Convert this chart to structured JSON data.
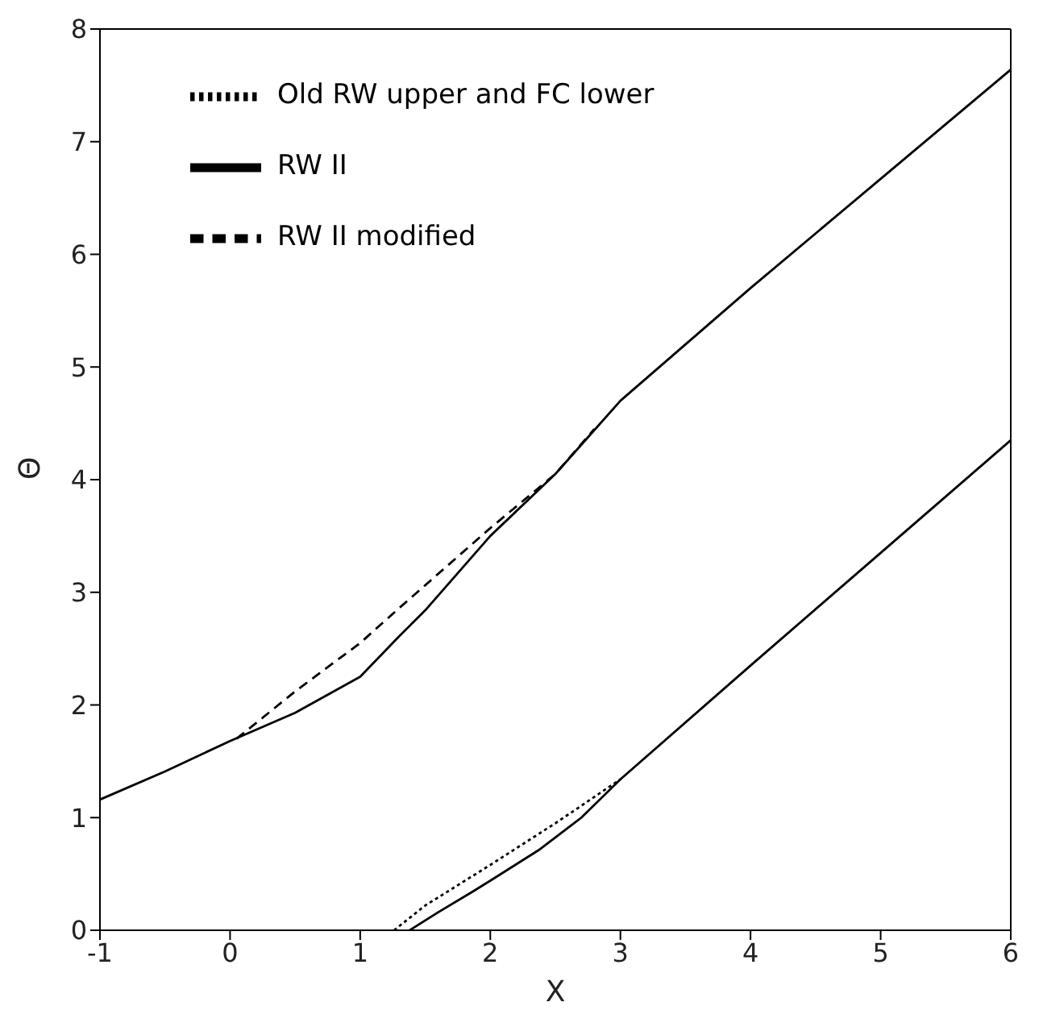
{
  "chart_data": {
    "type": "line",
    "xlabel": "X",
    "ylabel": "Θ",
    "xlim": [
      -1,
      6
    ],
    "ylim": [
      0,
      8
    ],
    "xticks": [
      -1,
      0,
      1,
      2,
      3,
      4,
      5,
      6
    ],
    "yticks": [
      0,
      1,
      2,
      3,
      4,
      5,
      6,
      7,
      8
    ],
    "legend": "top left",
    "grid": false,
    "marker": "none",
    "series": [
      {
        "name": "RW II",
        "color": "#000000",
        "line_style": "solid",
        "x": [
          -1,
          -0.5,
          0,
          0.5,
          1,
          1.3,
          1.5,
          2,
          2.5,
          3,
          4,
          5,
          6
        ],
        "values": [
          1.16,
          1.41,
          1.68,
          1.93,
          2.25,
          2.61,
          2.84,
          3.5,
          4.05,
          4.7,
          5.7,
          6.67,
          7.64
        ]
      },
      {
        "color": "#000000",
        "line_style": "solid",
        "x": [
          1.38,
          1.6,
          1.86,
          2,
          2.37,
          2.7,
          3,
          4,
          5,
          6
        ],
        "values": [
          0,
          0.16,
          0.34,
          0.44,
          0.71,
          1.0,
          1.34,
          2.35,
          3.35,
          4.35
        ]
      },
      {
        "name": "RW II modified",
        "color": "#000000",
        "line_style": "dashed",
        "x": [
          0.05,
          0.5,
          1,
          1.3,
          2,
          2.5,
          2.8
        ],
        "values": [
          1.7,
          2.12,
          2.55,
          2.86,
          3.57,
          4.05,
          4.45
        ]
      },
      {
        "name": "Old RW upper and FC lower",
        "color": "#000000",
        "line_style": "dotted",
        "x": [
          1.26,
          1.5,
          2,
          2.5,
          3
        ],
        "values": [
          0,
          0.22,
          0.58,
          0.95,
          1.34
        ]
      }
    ]
  }
}
